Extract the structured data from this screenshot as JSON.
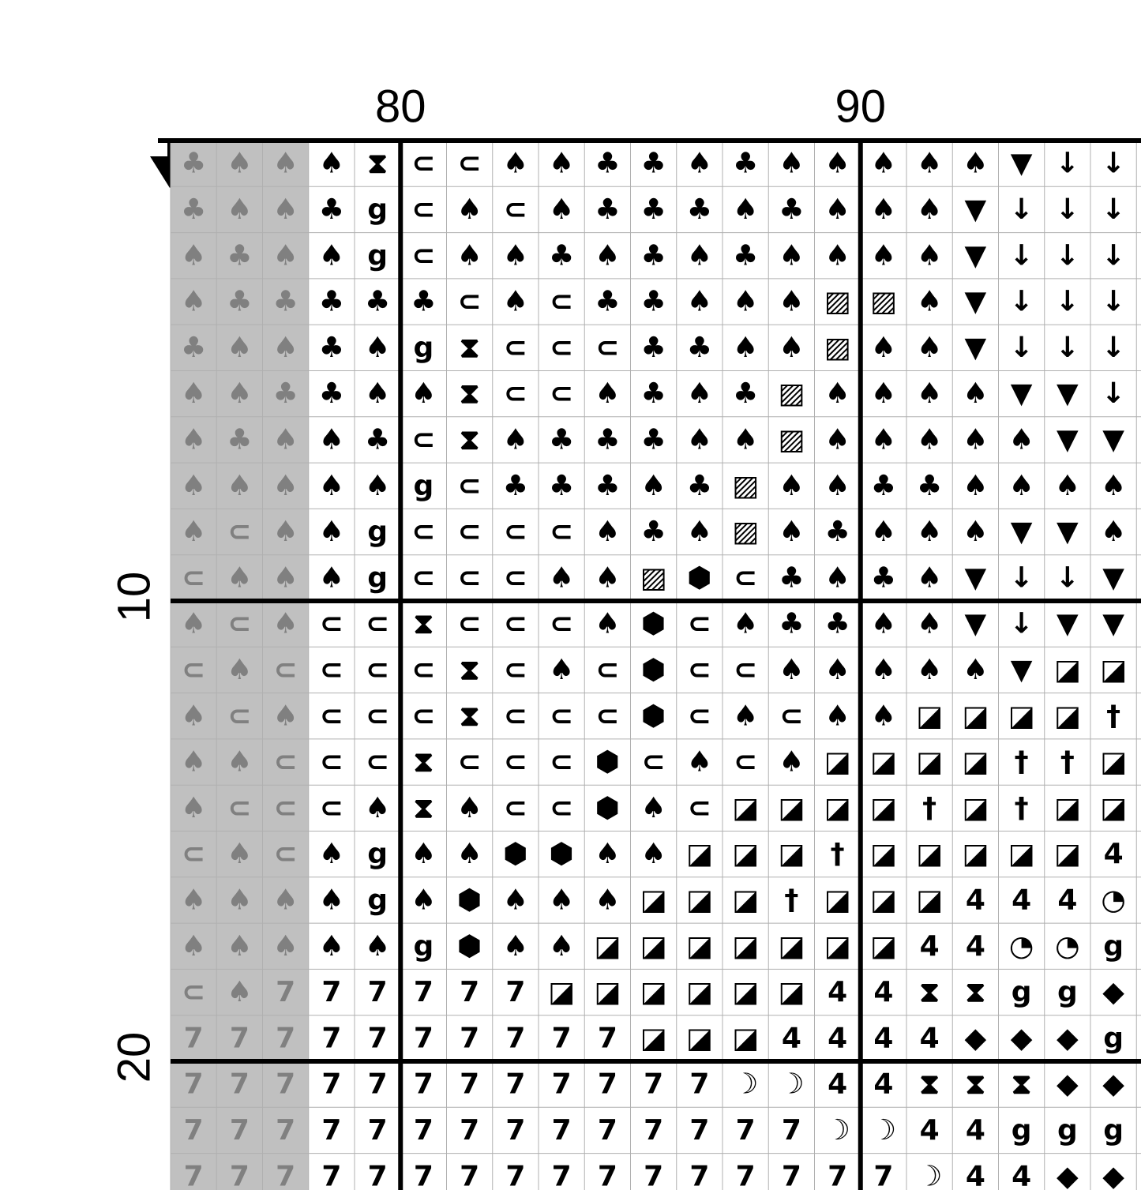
{
  "column_labels": [
    "80",
    "90"
  ],
  "row_labels": [
    "10",
    "20"
  ],
  "shaded_columns": 3,
  "grid": {
    "rows": [
      [
        "♣",
        "♠",
        "♠",
        "♠",
        "⧗",
        "⊂",
        "⊂",
        "♠",
        "♠",
        "♣",
        "♣",
        "♠",
        "♣",
        "♠",
        "♠",
        "♠",
        "♠",
        "♠",
        "▼",
        "↓",
        "↓"
      ],
      [
        "♣",
        "♠",
        "♠",
        "♣",
        "g",
        "⊂",
        "♠",
        "⊂",
        "♠",
        "♣",
        "♣",
        "♣",
        "♠",
        "♣",
        "♠",
        "♠",
        "♠",
        "▼",
        "↓",
        "↓",
        "↓"
      ],
      [
        "♠",
        "♣",
        "♠",
        "♠",
        "g",
        "⊂",
        "♠",
        "♠",
        "♣",
        "♠",
        "♣",
        "♠",
        "♣",
        "♠",
        "♠",
        "♠",
        "♠",
        "▼",
        "↓",
        "↓",
        "↓"
      ],
      [
        "♠",
        "♣",
        "♣",
        "♣",
        "♣",
        "♣",
        "⊂",
        "♠",
        "⊂",
        "♣",
        "♣",
        "♠",
        "♠",
        "♠",
        "▨",
        "▨",
        "♠",
        "▼",
        "↓",
        "↓",
        "↓"
      ],
      [
        "♣",
        "♠",
        "♠",
        "♣",
        "♠",
        "g",
        "⧗",
        "⊂",
        "⊂",
        "⊂",
        "♣",
        "♣",
        "♠",
        "♠",
        "▨",
        "♠",
        "♠",
        "▼",
        "↓",
        "↓",
        "↓"
      ],
      [
        "♠",
        "♠",
        "♣",
        "♣",
        "♠",
        "♠",
        "⧗",
        "⊂",
        "⊂",
        "♠",
        "♣",
        "♠",
        "♣",
        "▨",
        "♠",
        "♠",
        "♠",
        "♠",
        "▼",
        "▼",
        "↓"
      ],
      [
        "♠",
        "♣",
        "♠",
        "♠",
        "♣",
        "⊂",
        "⧗",
        "♠",
        "♣",
        "♣",
        "♣",
        "♠",
        "♠",
        "▨",
        "♠",
        "♠",
        "♠",
        "♠",
        "♠",
        "▼",
        "▼"
      ],
      [
        "♠",
        "♠",
        "♠",
        "♠",
        "♠",
        "g",
        "⊂",
        "♣",
        "♣",
        "♣",
        "♠",
        "♣",
        "▨",
        "♠",
        "♠",
        "♣",
        "♣",
        "♠",
        "♠",
        "♠",
        "♠"
      ],
      [
        "♠",
        "⊂",
        "♠",
        "♠",
        "g",
        "⊂",
        "⊂",
        "⊂",
        "⊂",
        "♠",
        "♣",
        "♠",
        "▨",
        "♠",
        "♣",
        "♠",
        "♠",
        "♠",
        "▼",
        "▼",
        "♠"
      ],
      [
        "⊂",
        "♠",
        "♠",
        "♠",
        "g",
        "⊂",
        "⊂",
        "⊂",
        "♠",
        "♠",
        "▨",
        "⬢",
        "⊂",
        "♣",
        "♠",
        "♣",
        "♠",
        "▼",
        "↓",
        "↓",
        "▼"
      ],
      [
        "♠",
        "⊂",
        "♠",
        "⊂",
        "⊂",
        "⧗",
        "⊂",
        "⊂",
        "⊂",
        "♠",
        "⬢",
        "⊂",
        "♠",
        "♣",
        "♣",
        "♠",
        "♠",
        "▼",
        "↓",
        "▼",
        "▼"
      ],
      [
        "⊂",
        "♠",
        "⊂",
        "⊂",
        "⊂",
        "⊂",
        "⧗",
        "⊂",
        "♠",
        "⊂",
        "⬢",
        "⊂",
        "⊂",
        "♠",
        "♠",
        "♠",
        "♠",
        "♠",
        "▼",
        "◪",
        "◪"
      ],
      [
        "♠",
        "⊂",
        "♠",
        "⊂",
        "⊂",
        "⊂",
        "⧗",
        "⊂",
        "⊂",
        "⊂",
        "⬢",
        "⊂",
        "♠",
        "⊂",
        "♠",
        "♠",
        "◪",
        "◪",
        "◪",
        "◪",
        "†"
      ],
      [
        "♠",
        "♠",
        "⊂",
        "⊂",
        "⊂",
        "⧗",
        "⊂",
        "⊂",
        "⊂",
        "⬢",
        "⊂",
        "♠",
        "⊂",
        "♠",
        "◪",
        "◪",
        "◪",
        "◪",
        "†",
        "†",
        "◪"
      ],
      [
        "♠",
        "⊂",
        "⊂",
        "⊂",
        "♠",
        "⧗",
        "♠",
        "⊂",
        "⊂",
        "⬢",
        "♠",
        "⊂",
        "◪",
        "◪",
        "◪",
        "◪",
        "†",
        "◪",
        "†",
        "◪",
        "◪"
      ],
      [
        "⊂",
        "♠",
        "⊂",
        "♠",
        "g",
        "♠",
        "♠",
        "⬢",
        "⬢",
        "♠",
        "♠",
        "◪",
        "◪",
        "◪",
        "†",
        "◪",
        "◪",
        "◪",
        "◪",
        "◪",
        "4"
      ],
      [
        "♠",
        "♠",
        "♠",
        "♠",
        "g",
        "♠",
        "⬢",
        "♠",
        "♠",
        "♠",
        "◪",
        "◪",
        "◪",
        "†",
        "◪",
        "◪",
        "◪",
        "4",
        "4",
        "4",
        "◔"
      ],
      [
        "♠",
        "♠",
        "♠",
        "♠",
        "♠",
        "g",
        "⬢",
        "♠",
        "♠",
        "◪",
        "◪",
        "◪",
        "◪",
        "◪",
        "◪",
        "◪",
        "4",
        "4",
        "◔",
        "◔",
        "g"
      ],
      [
        "⊂",
        "♠",
        "7",
        "7",
        "7",
        "7",
        "7",
        "7",
        "◪",
        "◪",
        "◪",
        "◪",
        "◪",
        "◪",
        "4",
        "4",
        "⧗",
        "⧗",
        "g",
        "g",
        "◆"
      ],
      [
        "7",
        "7",
        "7",
        "7",
        "7",
        "7",
        "7",
        "7",
        "7",
        "7",
        "◪",
        "◪",
        "◪",
        "4",
        "4",
        "4",
        "4",
        "◆",
        "◆",
        "◆",
        "g"
      ],
      [
        "7",
        "7",
        "7",
        "7",
        "7",
        "7",
        "7",
        "7",
        "7",
        "7",
        "7",
        "7",
        "☽",
        "☽",
        "4",
        "4",
        "⧗",
        "⧗",
        "⧗",
        "◆",
        "◆"
      ],
      [
        "7",
        "7",
        "7",
        "7",
        "7",
        "7",
        "7",
        "7",
        "7",
        "7",
        "7",
        "7",
        "7",
        "7",
        "☽",
        "☽",
        "4",
        "4",
        "g",
        "g",
        "g"
      ],
      [
        "7",
        "7",
        "7",
        "7",
        "7",
        "7",
        "7",
        "7",
        "7",
        "7",
        "7",
        "7",
        "7",
        "7",
        "7",
        "7",
        "☽",
        "4",
        "4",
        "◆",
        "◆"
      ]
    ]
  }
}
